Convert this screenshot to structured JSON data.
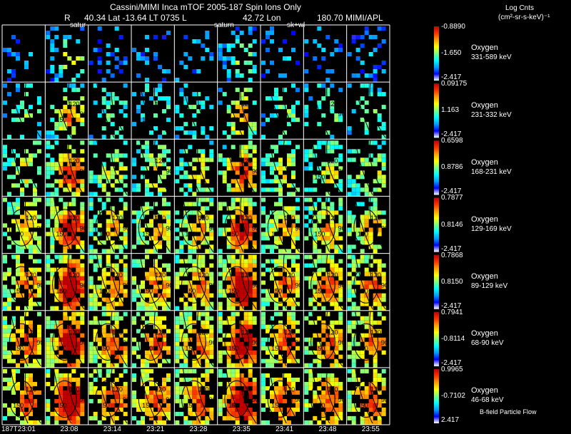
{
  "header": {
    "title": "Cassini/MIMI Inca mTOF  2005-187   Spin   Ions Only",
    "r_label": "R",
    "lat_text": "40.34 Lat -13.64 LT 0735 L",
    "lon_text": "42.72 Lon",
    "tail_text": "180.70  MIMI/APL",
    "units_title": "Log Cnts",
    "units": "(cm²-sr-s-keV)⁻¹"
  },
  "frame_labels": {
    "f1": "satur",
    "f5": "saturn",
    "f7": "sk+wl"
  },
  "footer": {
    "bfield": "B-field Particle Flow"
  },
  "colors": {
    "scale": [
      "#ffffff",
      "#0000ff",
      "#00a0ff",
      "#00ffff",
      "#80ff80",
      "#ffff00",
      "#ffa000",
      "#ff3000",
      "#c00000"
    ],
    "grid": "#ffffff",
    "contour": "#000000"
  },
  "chart_data": {
    "type": "heatmap",
    "time_labels": [
      "187T23:01",
      "23:08",
      "23:14",
      "23:21",
      "23:28",
      "23:35",
      "23:41",
      "23:48",
      "23:55"
    ],
    "contour_labels": [
      "30",
      "60",
      "90",
      "120",
      "150"
    ],
    "channels": [
      {
        "species": "Oxygen",
        "range": "331-589 keV",
        "max": "-0.8890",
        "mid": "-1.650",
        "min": "-2.417",
        "level": 0.15,
        "density": 0.25
      },
      {
        "species": "Oxygen",
        "range": "231-332 keV",
        "max": "0.09175",
        "mid": "1.163",
        "min": "-2.417",
        "level": 0.35,
        "density": 0.35
      },
      {
        "species": "Oxygen",
        "range": "168-231 keV",
        "max": "0.6598",
        "mid": "0.8786",
        "min": "-2.417",
        "level": 0.5,
        "density": 0.55
      },
      {
        "species": "Oxygen",
        "range": "129-169 keV",
        "max": "0.7877",
        "mid": "0.8146",
        "min": "-2.417",
        "level": 0.6,
        "density": 0.75
      },
      {
        "species": "Oxygen",
        "range": "89-129 keV",
        "max": "0.7868",
        "mid": "0.8150",
        "min": "-2.417",
        "level": 0.7,
        "density": 0.85
      },
      {
        "species": "Oxygen",
        "range": "68-90 keV",
        "max": "0.7941",
        "mid": "-0.8114",
        "min": "-2.417",
        "level": 0.72,
        "density": 0.8
      },
      {
        "species": "Oxygen",
        "range": "46-68 keV",
        "max": "0.9965",
        "mid": "-0.7102",
        "min": "2.417",
        "level": 0.75,
        "density": 0.75
      }
    ]
  }
}
